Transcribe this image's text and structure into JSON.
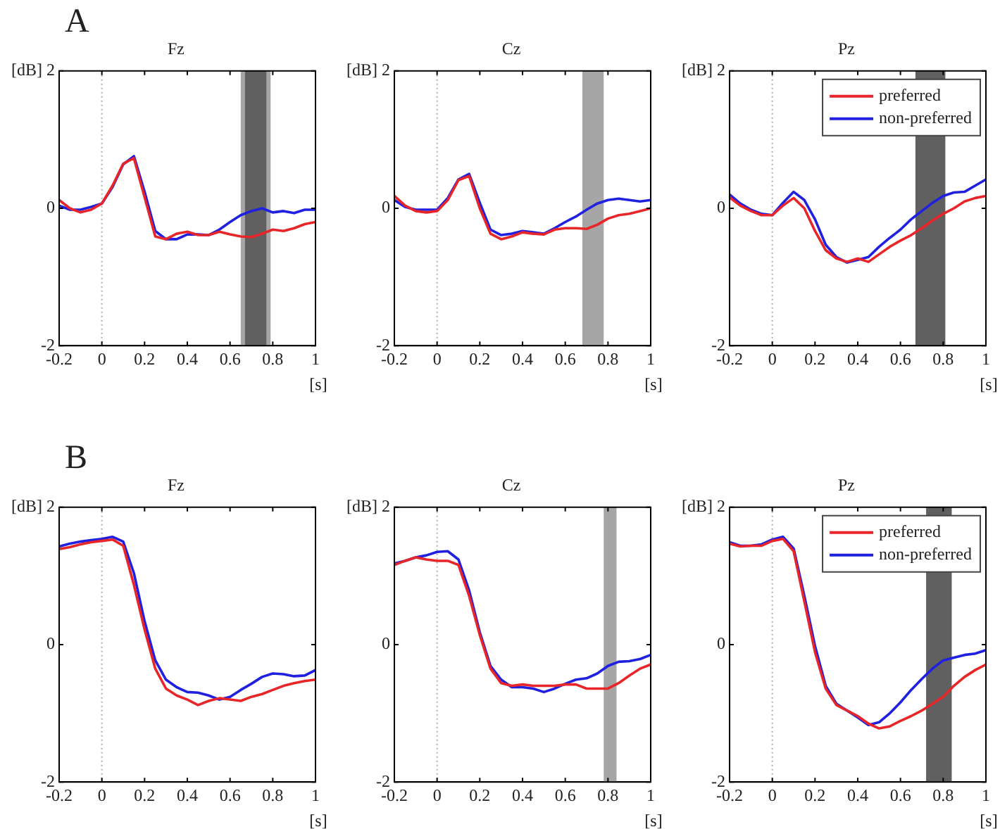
{
  "chart_data": [
    {
      "type": "line",
      "title": "Fz",
      "ylabel": "[dB]",
      "xlabel": "[s]",
      "annotations": [
        "A"
      ],
      "xlim": [
        -0.2,
        1
      ],
      "xticks": [
        -0.2,
        0,
        0.2,
        0.4,
        0.6,
        0.8,
        1
      ],
      "ylim": [
        -2,
        2
      ],
      "yticks": [
        -2,
        0,
        2
      ],
      "grid": false,
      "legend": false,
      "line_style": "solid",
      "marker": "none",
      "x": [
        -0.2,
        -0.15,
        -0.1,
        -0.05,
        0,
        0.05,
        0.1,
        0.15,
        0.2,
        0.25,
        0.3,
        0.35,
        0.4,
        0.45,
        0.5,
        0.55,
        0.6,
        0.65,
        0.7,
        0.75,
        0.8,
        0.85,
        0.9,
        0.95,
        1
      ],
      "series": [
        {
          "color": "#e8262a",
          "values": [
            0.12,
            0,
            -0.06,
            -0.02,
            0.07,
            0.33,
            0.65,
            0.73,
            0.16,
            -0.41,
            -0.45,
            -0.37,
            -0.34,
            -0.39,
            -0.39,
            -0.34,
            -0.38,
            -0.41,
            -0.42,
            -0.37,
            -0.31,
            -0.33,
            -0.29,
            -0.23,
            -0.2
          ]
        },
        {
          "color": "#2020e0",
          "values": [
            0.04,
            -0.02,
            -0.02,
            0.02,
            0.07,
            0.31,
            0.64,
            0.76,
            0.24,
            -0.33,
            -0.45,
            -0.45,
            -0.38,
            -0.38,
            -0.39,
            -0.31,
            -0.2,
            -0.1,
            -0.04,
            0,
            -0.06,
            -0.04,
            -0.07,
            -0.02,
            -0.02
          ]
        }
      ],
      "bands": [
        {
          "axis": "x",
          "from": 0.65,
          "to": 0.79,
          "color": "#a6a6a6"
        },
        {
          "axis": "x",
          "from": 0.67,
          "to": 0.77,
          "color": "#606060"
        }
      ],
      "ref_lines": [
        {
          "axis": "x",
          "value": 0,
          "color": "#b0b0b0",
          "line_style": "dotted"
        }
      ]
    },
    {
      "type": "line",
      "title": "Cz",
      "ylabel": "[dB]",
      "xlabel": "[s]",
      "xlim": [
        -0.2,
        1
      ],
      "xticks": [
        -0.2,
        0,
        0.2,
        0.4,
        0.6,
        0.8,
        1
      ],
      "ylim": [
        -2,
        2
      ],
      "yticks": [
        -2,
        0,
        2
      ],
      "grid": false,
      "legend": false,
      "line_style": "solid",
      "marker": "none",
      "x": [
        -0.2,
        -0.15,
        -0.1,
        -0.05,
        0,
        0.05,
        0.1,
        0.15,
        0.2,
        0.25,
        0.3,
        0.35,
        0.4,
        0.45,
        0.5,
        0.55,
        0.6,
        0.65,
        0.7,
        0.75,
        0.8,
        0.85,
        0.9,
        0.95,
        1
      ],
      "series": [
        {
          "color": "#e8262a",
          "values": [
            0.18,
            0.04,
            -0.04,
            -0.06,
            -0.04,
            0.12,
            0.41,
            0.47,
            0,
            -0.37,
            -0.45,
            -0.41,
            -0.35,
            -0.37,
            -0.38,
            -0.31,
            -0.29,
            -0.29,
            -0.3,
            -0.24,
            -0.15,
            -0.1,
            -0.08,
            -0.04,
            0
          ]
        },
        {
          "color": "#2020e0",
          "values": [
            0.12,
            0.02,
            -0.02,
            -0.02,
            -0.02,
            0.15,
            0.42,
            0.5,
            0.08,
            -0.31,
            -0.39,
            -0.37,
            -0.33,
            -0.35,
            -0.37,
            -0.29,
            -0.2,
            -0.12,
            -0.02,
            0.07,
            0.12,
            0.14,
            0.12,
            0.1,
            0.12
          ]
        }
      ],
      "bands": [
        {
          "axis": "x",
          "from": 0.68,
          "to": 0.78,
          "color": "#a6a6a6"
        }
      ],
      "ref_lines": [
        {
          "axis": "x",
          "value": 0,
          "color": "#b0b0b0",
          "line_style": "dotted"
        }
      ]
    },
    {
      "type": "line",
      "title": "Pz",
      "ylabel": "[dB]",
      "xlabel": "[s]",
      "xlim": [
        -0.2,
        1
      ],
      "xticks": [
        -0.2,
        0,
        0.2,
        0.4,
        0.6,
        0.8,
        1
      ],
      "ylim": [
        -2,
        2
      ],
      "yticks": [
        -2,
        0,
        2
      ],
      "grid": false,
      "legend": "top right",
      "line_style": "solid",
      "marker": "none",
      "x": [
        -0.2,
        -0.15,
        -0.1,
        -0.05,
        0,
        0.05,
        0.1,
        0.15,
        0.2,
        0.25,
        0.3,
        0.35,
        0.4,
        0.45,
        0.5,
        0.55,
        0.6,
        0.65,
        0.7,
        0.75,
        0.8,
        0.85,
        0.9,
        0.95,
        1
      ],
      "series": [
        {
          "name": "preferred",
          "color": "#e8262a",
          "values": [
            0.16,
            0.04,
            -0.04,
            -0.1,
            -0.1,
            0.04,
            0.15,
            0,
            -0.33,
            -0.61,
            -0.73,
            -0.78,
            -0.73,
            -0.78,
            -0.67,
            -0.56,
            -0.47,
            -0.39,
            -0.29,
            -0.18,
            -0.08,
            0,
            0.1,
            0.15,
            0.18
          ]
        },
        {
          "name": "non-preferred",
          "color": "#2020e0",
          "values": [
            0.2,
            0.07,
            -0.02,
            -0.08,
            -0.1,
            0.08,
            0.24,
            0.12,
            -0.16,
            -0.53,
            -0.71,
            -0.79,
            -0.75,
            -0.71,
            -0.56,
            -0.43,
            -0.31,
            -0.16,
            -0.04,
            0.08,
            0.18,
            0.23,
            0.24,
            0.33,
            0.42
          ]
        }
      ],
      "bands": [
        {
          "axis": "x",
          "from": 0.67,
          "to": 0.81,
          "color": "#606060"
        }
      ],
      "ref_lines": [
        {
          "axis": "x",
          "value": 0,
          "color": "#b0b0b0",
          "line_style": "dotted"
        }
      ]
    },
    {
      "type": "line",
      "title": "Fz",
      "ylabel": "[dB]",
      "xlabel": "[s]",
      "annotations": [
        "B"
      ],
      "xlim": [
        -0.2,
        1
      ],
      "xticks": [
        -0.2,
        0,
        0.2,
        0.4,
        0.6,
        0.8,
        1
      ],
      "ylim": [
        -2,
        2
      ],
      "yticks": [
        -2,
        0,
        2
      ],
      "grid": false,
      "legend": false,
      "line_style": "solid",
      "marker": "none",
      "x": [
        -0.2,
        -0.15,
        -0.1,
        -0.05,
        0,
        0.05,
        0.1,
        0.15,
        0.2,
        0.25,
        0.3,
        0.35,
        0.4,
        0.45,
        0.5,
        0.55,
        0.6,
        0.65,
        0.7,
        0.75,
        0.8,
        0.85,
        0.9,
        0.95,
        1
      ],
      "series": [
        {
          "color": "#e8262a",
          "values": [
            1.39,
            1.42,
            1.46,
            1.49,
            1.51,
            1.53,
            1.44,
            0.87,
            0.22,
            -0.35,
            -0.64,
            -0.74,
            -0.8,
            -0.88,
            -0.82,
            -0.78,
            -0.8,
            -0.82,
            -0.76,
            -0.72,
            -0.66,
            -0.6,
            -0.56,
            -0.53,
            -0.51
          ]
        },
        {
          "color": "#2020e0",
          "values": [
            1.43,
            1.47,
            1.5,
            1.52,
            1.54,
            1.57,
            1.5,
            1.04,
            0.34,
            -0.23,
            -0.51,
            -0.62,
            -0.69,
            -0.7,
            -0.74,
            -0.8,
            -0.76,
            -0.66,
            -0.57,
            -0.47,
            -0.42,
            -0.43,
            -0.46,
            -0.45,
            -0.37
          ]
        }
      ],
      "ref_lines": [
        {
          "axis": "x",
          "value": 0,
          "color": "#b0b0b0",
          "line_style": "dotted"
        }
      ]
    },
    {
      "type": "line",
      "title": "Cz",
      "ylabel": "[dB]",
      "xlabel": "[s]",
      "xlim": [
        -0.2,
        1
      ],
      "xticks": [
        -0.2,
        0,
        0.2,
        0.4,
        0.6,
        0.8,
        1
      ],
      "ylim": [
        -2,
        2
      ],
      "yticks": [
        -2,
        0,
        2
      ],
      "grid": false,
      "legend": false,
      "line_style": "solid",
      "marker": "none",
      "x": [
        -0.2,
        -0.15,
        -0.1,
        -0.05,
        0,
        0.05,
        0.1,
        0.15,
        0.2,
        0.25,
        0.3,
        0.35,
        0.4,
        0.45,
        0.5,
        0.55,
        0.6,
        0.65,
        0.7,
        0.75,
        0.8,
        0.85,
        0.9,
        0.95,
        1
      ],
      "series": [
        {
          "color": "#e8262a",
          "values": [
            1.16,
            1.22,
            1.27,
            1.24,
            1.22,
            1.22,
            1.16,
            0.71,
            0.14,
            -0.35,
            -0.56,
            -0.6,
            -0.58,
            -0.6,
            -0.6,
            -0.6,
            -0.58,
            -0.58,
            -0.64,
            -0.64,
            -0.64,
            -0.56,
            -0.45,
            -0.35,
            -0.29
          ]
        },
        {
          "color": "#2020e0",
          "values": [
            1.18,
            1.22,
            1.27,
            1.3,
            1.35,
            1.36,
            1.24,
            0.79,
            0.18,
            -0.31,
            -0.51,
            -0.62,
            -0.62,
            -0.64,
            -0.69,
            -0.64,
            -0.57,
            -0.51,
            -0.49,
            -0.42,
            -0.31,
            -0.25,
            -0.24,
            -0.21,
            -0.15
          ]
        }
      ],
      "bands": [
        {
          "axis": "x",
          "from": 0.78,
          "to": 0.84,
          "color": "#a6a6a6"
        }
      ],
      "ref_lines": [
        {
          "axis": "x",
          "value": 0,
          "color": "#b0b0b0",
          "line_style": "dotted"
        }
      ]
    },
    {
      "type": "line",
      "title": "Pz",
      "ylabel": "[dB]",
      "xlabel": "[s]",
      "xlim": [
        -0.2,
        1
      ],
      "xticks": [
        -0.2,
        0,
        0.2,
        0.4,
        0.6,
        0.8,
        1
      ],
      "ylim": [
        -2,
        2
      ],
      "yticks": [
        -2,
        0,
        2
      ],
      "grid": false,
      "legend": "top right",
      "line_style": "solid",
      "marker": "none",
      "x": [
        -0.2,
        -0.15,
        -0.1,
        -0.05,
        0,
        0.05,
        0.1,
        0.15,
        0.2,
        0.25,
        0.3,
        0.35,
        0.4,
        0.45,
        0.5,
        0.55,
        0.6,
        0.65,
        0.7,
        0.75,
        0.8,
        0.85,
        0.9,
        0.95,
        1
      ],
      "series": [
        {
          "name": "preferred",
          "color": "#e8262a",
          "values": [
            1.47,
            1.43,
            1.44,
            1.44,
            1.51,
            1.54,
            1.36,
            0.63,
            -0.11,
            -0.64,
            -0.88,
            -0.96,
            -1.04,
            -1.15,
            -1.22,
            -1.19,
            -1.11,
            -1.04,
            -0.96,
            -0.86,
            -0.76,
            -0.6,
            -0.47,
            -0.37,
            -0.29
          ]
        },
        {
          "name": "non-preferred",
          "color": "#2020e0",
          "values": [
            1.49,
            1.44,
            1.44,
            1.46,
            1.53,
            1.57,
            1.4,
            0.71,
            -0.02,
            -0.6,
            -0.86,
            -0.96,
            -1.06,
            -1.17,
            -1.13,
            -1,
            -0.84,
            -0.66,
            -0.5,
            -0.35,
            -0.23,
            -0.19,
            -0.15,
            -0.13,
            -0.08
          ]
        }
      ],
      "bands": [
        {
          "axis": "x",
          "from": 0.72,
          "to": 0.84,
          "color": "#606060"
        }
      ],
      "ref_lines": [
        {
          "axis": "x",
          "value": 0,
          "color": "#b0b0b0",
          "line_style": "dotted"
        }
      ]
    }
  ]
}
